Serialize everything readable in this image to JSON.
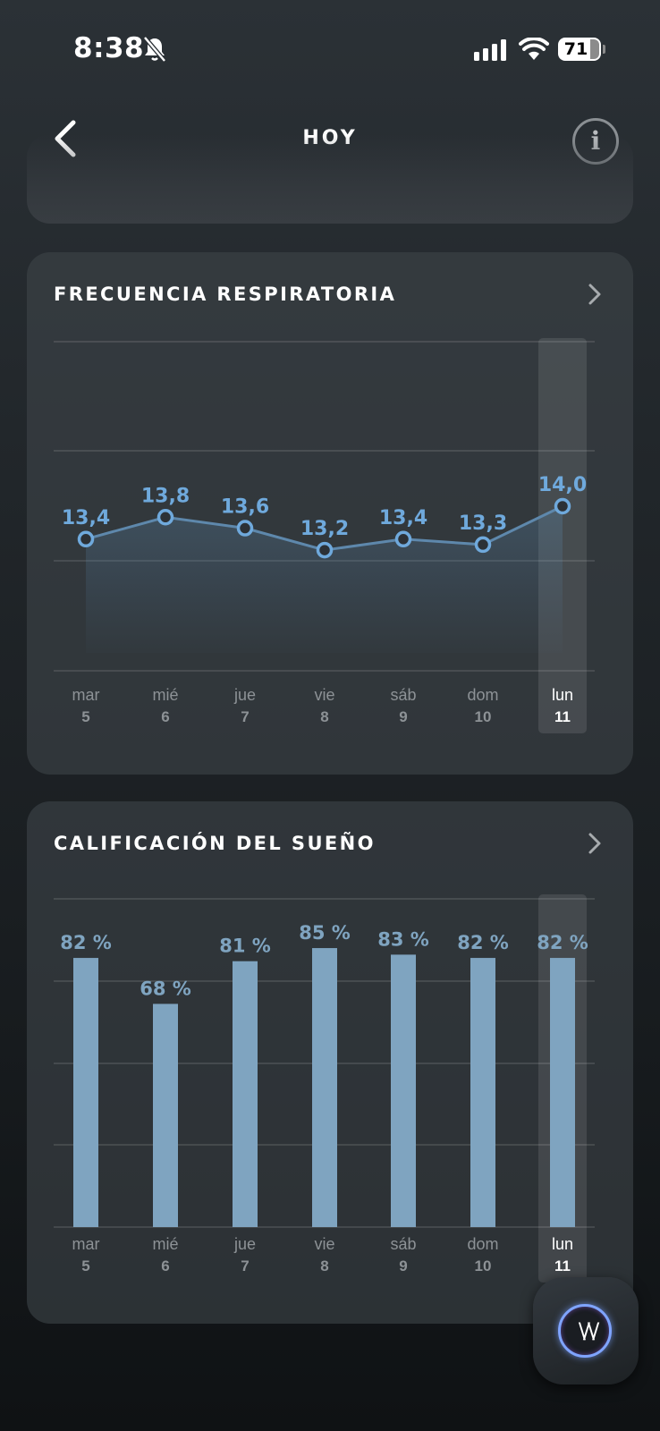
{
  "status_bar": {
    "time": "8:38",
    "battery": "71",
    "icons": [
      "bell-slash-icon",
      "cellular-signal-icon",
      "wifi-icon",
      "battery-icon"
    ]
  },
  "header": {
    "title": "HOY",
    "back_icon": "chevron-left-icon",
    "info_icon": "info-icon",
    "info_glyph": "i"
  },
  "cards": {
    "respiratory": {
      "title": "FRECUENCIA RESPIRATORIA",
      "chevron_icon": "chevron-right-icon"
    },
    "sleep": {
      "title": "CALIFICACIÓN DEL SUEÑO",
      "chevron_icon": "chevron-right-icon"
    }
  },
  "chart_data": [
    {
      "type": "line",
      "title": "FRECUENCIA RESPIRATORIA",
      "categories": [
        {
          "day": "mar",
          "date": "5"
        },
        {
          "day": "mié",
          "date": "6"
        },
        {
          "day": "jue",
          "date": "7"
        },
        {
          "day": "vie",
          "date": "8"
        },
        {
          "day": "sáb",
          "date": "9"
        },
        {
          "day": "dom",
          "date": "10"
        },
        {
          "day": "lun",
          "date": "11"
        }
      ],
      "values": [
        13.4,
        13.8,
        13.6,
        13.2,
        13.4,
        13.3,
        14.0
      ],
      "labels": [
        "13,4",
        "13,8",
        "13,6",
        "13,2",
        "13,4",
        "13,3",
        "14,0"
      ],
      "ylim": [
        11.0,
        17.0
      ],
      "grid": true,
      "highlighted_index": 6,
      "color": "#6fa9dc"
    },
    {
      "type": "bar",
      "title": "CALIFICACIÓN DEL SUEÑO",
      "categories": [
        {
          "day": "mar",
          "date": "5"
        },
        {
          "day": "mié",
          "date": "6"
        },
        {
          "day": "jue",
          "date": "7"
        },
        {
          "day": "vie",
          "date": "8"
        },
        {
          "day": "sáb",
          "date": "9"
        },
        {
          "day": "dom",
          "date": "10"
        },
        {
          "day": "lun",
          "date": "11"
        }
      ],
      "values": [
        82,
        68,
        81,
        85,
        83,
        82,
        82
      ],
      "labels": [
        "82 %",
        "68 %",
        "81 %",
        "85 %",
        "83 %",
        "82 %",
        "82 %"
      ],
      "ylim": [
        0,
        100
      ],
      "grid": true,
      "highlighted_index": 6,
      "color": "#7fa4c0"
    }
  ],
  "ai_button": {
    "icon": "assistant-icon",
    "glyph": "\\/\\/"
  }
}
